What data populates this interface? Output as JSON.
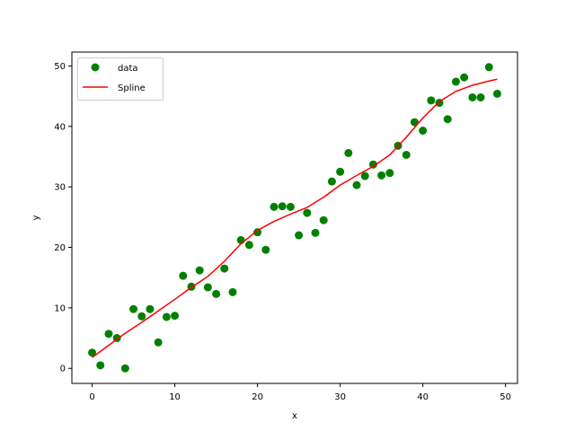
{
  "chart_data": {
    "type": "scatter",
    "xlabel": "x",
    "ylabel": "y",
    "xlim": [
      -2.45,
      51.45
    ],
    "ylim": [
      -2.49,
      52.29
    ],
    "xticks": [
      0,
      10,
      20,
      30,
      40,
      50
    ],
    "yticks": [
      0,
      10,
      20,
      30,
      40,
      50
    ],
    "grid": false,
    "legend_position": "upper-left",
    "series": [
      {
        "name": "data",
        "kind": "scatter",
        "color": "#008000",
        "x": [
          0,
          1,
          2,
          3,
          4,
          5,
          6,
          7,
          8,
          9,
          10,
          11,
          12,
          13,
          14,
          15,
          16,
          17,
          18,
          19,
          20,
          21,
          22,
          23,
          24,
          25,
          26,
          27,
          28,
          29,
          30,
          31,
          32,
          33,
          34,
          35,
          36,
          37,
          38,
          39,
          40,
          41,
          42,
          43,
          44,
          45,
          46,
          47,
          48,
          49
        ],
        "y": [
          2.6,
          0.5,
          5.7,
          5.0,
          0.0,
          9.8,
          8.6,
          9.8,
          4.3,
          8.5,
          8.7,
          15.3,
          13.5,
          16.2,
          13.4,
          12.3,
          16.5,
          12.6,
          21.2,
          20.4,
          22.5,
          19.6,
          26.7,
          26.8,
          26.7,
          22.0,
          25.7,
          22.4,
          24.5,
          30.9,
          32.5,
          35.6,
          30.3,
          31.8,
          33.7,
          31.9,
          32.3,
          36.8,
          35.3,
          40.7,
          39.3,
          44.3,
          43.9,
          41.2,
          47.4,
          48.1,
          44.8,
          44.8,
          49.8,
          45.4
        ]
      },
      {
        "name": "Spline",
        "kind": "line",
        "color": "#ff0000",
        "x": [
          0,
          2,
          4,
          6,
          8,
          10,
          12,
          14,
          16,
          18,
          20,
          22,
          24,
          26,
          28,
          30,
          32,
          34,
          36,
          38,
          40,
          42,
          44,
          46,
          48,
          49
        ],
        "y": [
          1.8,
          3.8,
          5.8,
          7.6,
          9.5,
          11.4,
          13.4,
          15.2,
          17.7,
          20.6,
          22.8,
          24.3,
          25.5,
          26.6,
          28.3,
          30.3,
          31.9,
          33.4,
          35.3,
          38.2,
          41.4,
          44.1,
          45.8,
          46.8,
          47.5,
          47.8
        ]
      }
    ]
  }
}
